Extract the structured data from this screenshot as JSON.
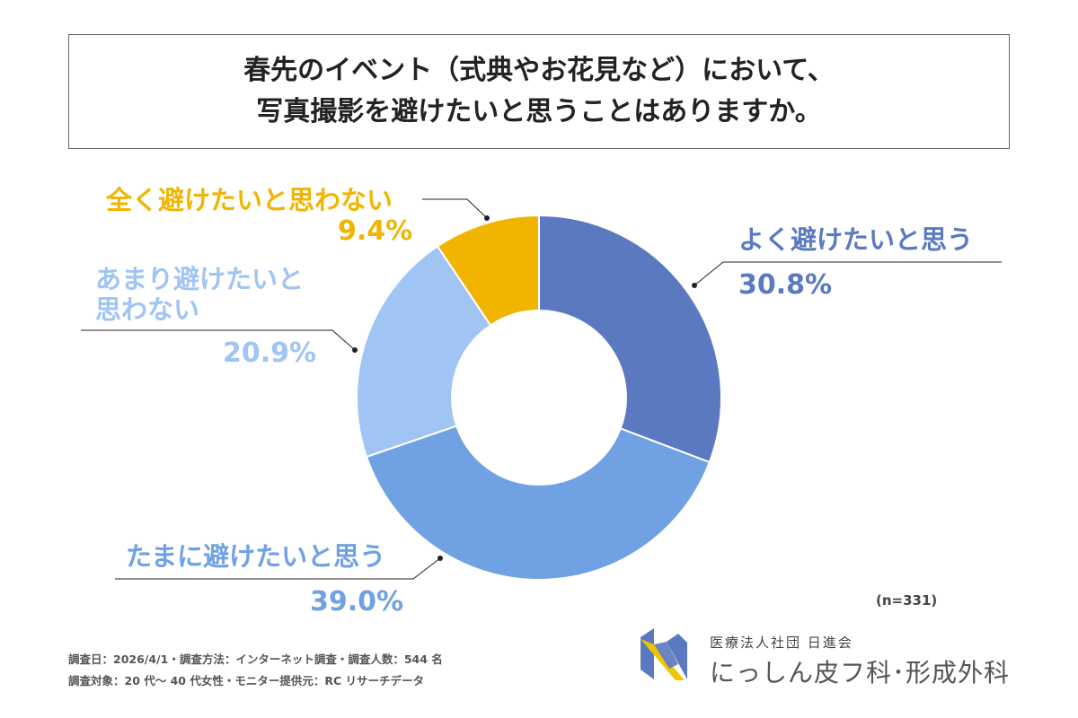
{
  "title": {
    "line1": "春先のイベント（式典やお花見など）において、",
    "line2": "写真撮影を避けたいと思うことはありますか。"
  },
  "chart_data": {
    "type": "pie",
    "donut": true,
    "start": "top, clockwise",
    "categories": [
      "よく避けたいと思う",
      "たまに避けたいと思う",
      "あまり避けたいと思わない",
      "全く避けたいと思わない"
    ],
    "values": [
      30.8,
      39.0,
      20.9,
      9.4
    ],
    "labels": [
      "30.8%",
      "39.0%",
      "20.9%",
      "9.4%"
    ],
    "colors": [
      "#5b79c1",
      "#70a1e3",
      "#a0c4f4",
      "#f1b500"
    ],
    "note": "(n=331)"
  },
  "footer": {
    "line1": "調査日：2026/4/1・調査方法：インターネット調査・調査人数：544 名",
    "line2": "調査対象：20 代～ 40 代女性・モニター提供元：RC リサーチデータ"
  },
  "logo": {
    "org": "医療法人社団 日進会",
    "clinic": "にっしん皮フ科･形成外科"
  }
}
